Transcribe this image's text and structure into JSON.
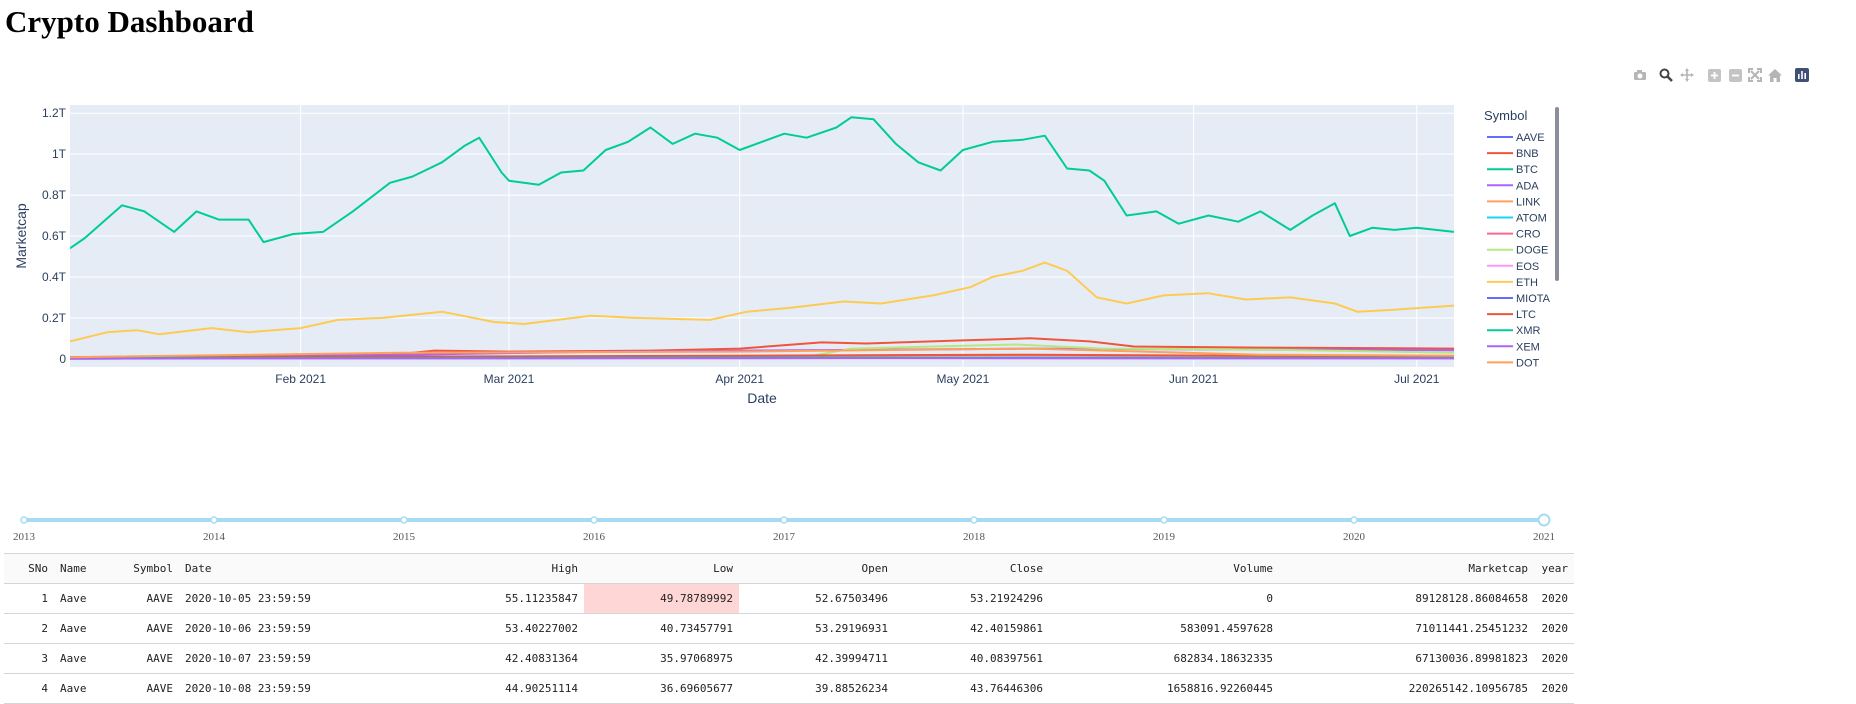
{
  "page": {
    "title": "Crypto Dashboard"
  },
  "modebar": {
    "icons": [
      "camera-icon",
      "zoom-icon",
      "pan-icon",
      "zoom-in-icon",
      "zoom-out-icon",
      "autoscale-icon",
      "reset-axes-icon",
      "plotly-logo-icon"
    ]
  },
  "colors": {
    "plot_bg": "#e5ecf6",
    "btc": "#00cc96",
    "eth": "#fecb52",
    "bnb": "#ef553b"
  },
  "chart_data": {
    "type": "line",
    "xlabel": "Date",
    "ylabel": "Marketcap",
    "x_range": [
      "2021-01-01",
      "2021-07-06"
    ],
    "y_range": [
      -0.04,
      1.24
    ],
    "y_unit": "trillion USD",
    "x_ticks": [
      {
        "date": "2021-02-01",
        "label": "Feb 2021"
      },
      {
        "date": "2021-03-01",
        "label": "Mar 2021"
      },
      {
        "date": "2021-04-01",
        "label": "Apr 2021"
      },
      {
        "date": "2021-05-01",
        "label": "May 2021"
      },
      {
        "date": "2021-06-01",
        "label": "Jun 2021"
      },
      {
        "date": "2021-07-01",
        "label": "Jul 2021"
      }
    ],
    "y_ticks": [
      {
        "value": 0,
        "label": "0"
      },
      {
        "value": 0.2,
        "label": "0.2T"
      },
      {
        "value": 0.4,
        "label": "0.4T"
      },
      {
        "value": 0.6,
        "label": "0.6T"
      },
      {
        "value": 0.8,
        "label": "0.8T"
      },
      {
        "value": 1.0,
        "label": "1T"
      },
      {
        "value": 1.2,
        "label": "1.2T"
      }
    ],
    "grid": true,
    "legend_title": "Symbol",
    "legend_position": "right",
    "series": [
      {
        "name": "AAVE",
        "color": "#636efa",
        "points": [
          [
            "2021-01-01",
            0.001
          ],
          [
            "2021-02-15",
            0.003
          ],
          [
            "2021-04-01",
            0.005
          ],
          [
            "2021-05-10",
            0.007
          ],
          [
            "2021-06-10",
            0.004
          ],
          [
            "2021-07-06",
            0.003
          ]
        ]
      },
      {
        "name": "BNB",
        "color": "#ef553b",
        "points": [
          [
            "2021-01-01",
            0.006
          ],
          [
            "2021-02-10",
            0.008
          ],
          [
            "2021-02-19",
            0.04
          ],
          [
            "2021-03-01",
            0.035
          ],
          [
            "2021-03-20",
            0.04
          ],
          [
            "2021-04-01",
            0.05
          ],
          [
            "2021-04-12",
            0.08
          ],
          [
            "2021-04-18",
            0.075
          ],
          [
            "2021-05-01",
            0.09
          ],
          [
            "2021-05-10",
            0.1
          ],
          [
            "2021-05-18",
            0.085
          ],
          [
            "2021-05-24",
            0.06
          ],
          [
            "2021-06-10",
            0.055
          ],
          [
            "2021-07-06",
            0.05
          ]
        ]
      },
      {
        "name": "BTC",
        "color": "#00cc96",
        "points": [
          [
            "2021-01-01",
            0.54
          ],
          [
            "2021-01-03",
            0.59
          ],
          [
            "2021-01-08",
            0.75
          ],
          [
            "2021-01-11",
            0.72
          ],
          [
            "2021-01-15",
            0.62
          ],
          [
            "2021-01-18",
            0.72
          ],
          [
            "2021-01-21",
            0.68
          ],
          [
            "2021-01-25",
            0.68
          ],
          [
            "2021-01-27",
            0.57
          ],
          [
            "2021-01-31",
            0.61
          ],
          [
            "2021-02-04",
            0.62
          ],
          [
            "2021-02-08",
            0.72
          ],
          [
            "2021-02-13",
            0.86
          ],
          [
            "2021-02-16",
            0.89
          ],
          [
            "2021-02-20",
            0.96
          ],
          [
            "2021-02-23",
            1.04
          ],
          [
            "2021-02-25",
            1.08
          ],
          [
            "2021-02-28",
            0.91
          ],
          [
            "2021-03-01",
            0.87
          ],
          [
            "2021-03-05",
            0.85
          ],
          [
            "2021-03-08",
            0.91
          ],
          [
            "2021-03-11",
            0.92
          ],
          [
            "2021-03-14",
            1.02
          ],
          [
            "2021-03-17",
            1.06
          ],
          [
            "2021-03-20",
            1.13
          ],
          [
            "2021-03-23",
            1.05
          ],
          [
            "2021-03-26",
            1.1
          ],
          [
            "2021-03-29",
            1.08
          ],
          [
            "2021-04-01",
            1.02
          ],
          [
            "2021-04-04",
            1.06
          ],
          [
            "2021-04-07",
            1.1
          ],
          [
            "2021-04-10",
            1.08
          ],
          [
            "2021-04-14",
            1.13
          ],
          [
            "2021-04-16",
            1.18
          ],
          [
            "2021-04-19",
            1.17
          ],
          [
            "2021-04-22",
            1.05
          ],
          [
            "2021-04-25",
            0.96
          ],
          [
            "2021-04-28",
            0.92
          ],
          [
            "2021-05-01",
            1.02
          ],
          [
            "2021-05-05",
            1.06
          ],
          [
            "2021-05-09",
            1.07
          ],
          [
            "2021-05-12",
            1.09
          ],
          [
            "2021-05-15",
            0.93
          ],
          [
            "2021-05-18",
            0.92
          ],
          [
            "2021-05-20",
            0.87
          ],
          [
            "2021-05-23",
            0.7
          ],
          [
            "2021-05-27",
            0.72
          ],
          [
            "2021-05-30",
            0.66
          ],
          [
            "2021-06-03",
            0.7
          ],
          [
            "2021-06-07",
            0.67
          ],
          [
            "2021-06-10",
            0.72
          ],
          [
            "2021-06-14",
            0.63
          ],
          [
            "2021-06-17",
            0.7
          ],
          [
            "2021-06-20",
            0.76
          ],
          [
            "2021-06-22",
            0.6
          ],
          [
            "2021-06-25",
            0.64
          ],
          [
            "2021-06-28",
            0.63
          ],
          [
            "2021-07-01",
            0.64
          ],
          [
            "2021-07-06",
            0.62
          ]
        ]
      },
      {
        "name": "ADA",
        "color": "#ab63fa",
        "points": [
          [
            "2021-01-01",
            0.007
          ],
          [
            "2021-02-15",
            0.02
          ],
          [
            "2021-03-15",
            0.035
          ],
          [
            "2021-05-10",
            0.05
          ],
          [
            "2021-06-10",
            0.045
          ],
          [
            "2021-07-06",
            0.042
          ]
        ]
      },
      {
        "name": "LINK",
        "color": "#ffa15a",
        "points": [
          [
            "2021-01-01",
            0.005
          ],
          [
            "2021-03-01",
            0.01
          ],
          [
            "2021-05-10",
            0.018
          ],
          [
            "2021-07-06",
            0.008
          ]
        ]
      },
      {
        "name": "ATOM",
        "color": "#19d3f3",
        "points": [
          [
            "2021-01-01",
            0.001
          ],
          [
            "2021-04-15",
            0.005
          ],
          [
            "2021-07-06",
            0.002
          ]
        ]
      },
      {
        "name": "CRO",
        "color": "#ff6692",
        "points": [
          [
            "2021-01-01",
            0.001
          ],
          [
            "2021-04-15",
            0.004
          ],
          [
            "2021-07-06",
            0.002
          ]
        ]
      },
      {
        "name": "DOGE",
        "color": "#b6e880",
        "points": [
          [
            "2021-01-01",
            0.001
          ],
          [
            "2021-04-10",
            0.01
          ],
          [
            "2021-04-16",
            0.05
          ],
          [
            "2021-05-08",
            0.07
          ],
          [
            "2021-05-20",
            0.05
          ],
          [
            "2021-06-10",
            0.045
          ],
          [
            "2021-07-06",
            0.03
          ]
        ]
      },
      {
        "name": "EOS",
        "color": "#ff97ff",
        "points": [
          [
            "2021-01-01",
            0.002
          ],
          [
            "2021-04-15",
            0.007
          ],
          [
            "2021-07-06",
            0.003
          ]
        ]
      },
      {
        "name": "ETH",
        "color": "#fecb52",
        "points": [
          [
            "2021-01-01",
            0.085
          ],
          [
            "2021-01-06",
            0.13
          ],
          [
            "2021-01-10",
            0.14
          ],
          [
            "2021-01-13",
            0.12
          ],
          [
            "2021-01-20",
            0.15
          ],
          [
            "2021-01-25",
            0.13
          ],
          [
            "2021-02-01",
            0.15
          ],
          [
            "2021-02-06",
            0.19
          ],
          [
            "2021-02-12",
            0.2
          ],
          [
            "2021-02-20",
            0.23
          ],
          [
            "2021-02-27",
            0.18
          ],
          [
            "2021-03-03",
            0.17
          ],
          [
            "2021-03-12",
            0.21
          ],
          [
            "2021-03-18",
            0.2
          ],
          [
            "2021-03-28",
            0.19
          ],
          [
            "2021-04-02",
            0.23
          ],
          [
            "2021-04-08",
            0.25
          ],
          [
            "2021-04-15",
            0.28
          ],
          [
            "2021-04-20",
            0.27
          ],
          [
            "2021-04-27",
            0.31
          ],
          [
            "2021-05-02",
            0.35
          ],
          [
            "2021-05-05",
            0.4
          ],
          [
            "2021-05-09",
            0.43
          ],
          [
            "2021-05-12",
            0.47
          ],
          [
            "2021-05-15",
            0.43
          ],
          [
            "2021-05-19",
            0.3
          ],
          [
            "2021-05-23",
            0.27
          ],
          [
            "2021-05-28",
            0.31
          ],
          [
            "2021-06-03",
            0.32
          ],
          [
            "2021-06-08",
            0.29
          ],
          [
            "2021-06-14",
            0.3
          ],
          [
            "2021-06-20",
            0.27
          ],
          [
            "2021-06-23",
            0.23
          ],
          [
            "2021-06-28",
            0.24
          ],
          [
            "2021-07-06",
            0.26
          ]
        ]
      },
      {
        "name": "MIOTA",
        "color": "#636efa",
        "points": [
          [
            "2021-01-01",
            0.001
          ],
          [
            "2021-04-15",
            0.004
          ],
          [
            "2021-07-06",
            0.002
          ]
        ]
      },
      {
        "name": "LTC",
        "color": "#ef553b",
        "points": [
          [
            "2021-01-01",
            0.009
          ],
          [
            "2021-03-01",
            0.012
          ],
          [
            "2021-05-10",
            0.02
          ],
          [
            "2021-07-06",
            0.01
          ]
        ]
      },
      {
        "name": "XMR",
        "color": "#00cc96",
        "points": [
          [
            "2021-01-01",
            0.003
          ],
          [
            "2021-04-15",
            0.006
          ],
          [
            "2021-07-06",
            0.004
          ]
        ]
      },
      {
        "name": "XEM",
        "color": "#ab63fa",
        "points": [
          [
            "2021-01-01",
            0.001
          ],
          [
            "2021-04-15",
            0.003
          ],
          [
            "2021-07-06",
            0.002
          ]
        ]
      },
      {
        "name": "DOT",
        "color": "#ffa15a",
        "points": [
          [
            "2021-01-01",
            0.008
          ],
          [
            "2021-02-15",
            0.03
          ],
          [
            "2021-04-01",
            0.035
          ],
          [
            "2021-05-10",
            0.05
          ],
          [
            "2021-06-10",
            0.02
          ],
          [
            "2021-07-06",
            0.015
          ]
        ]
      }
    ]
  },
  "slider": {
    "labels": [
      "2013",
      "2014",
      "2015",
      "2016",
      "2017",
      "2018",
      "2019",
      "2020",
      "2021"
    ],
    "selected": "2021",
    "color": "#a6dcf3"
  },
  "table": {
    "columns": [
      "SNo",
      "Name",
      "Symbol",
      "Date",
      "High",
      "Low",
      "Open",
      "Close",
      "Volume",
      "Marketcap",
      "year"
    ],
    "rows": [
      [
        "1",
        "Aave",
        "AAVE",
        "2020-10-05 23:59:59",
        "55.11235847",
        "49.78789992",
        "52.67503496",
        "53.21924296",
        "0",
        "89128128.86084658",
        "2020"
      ],
      [
        "2",
        "Aave",
        "AAVE",
        "2020-10-06 23:59:59",
        "53.40227002",
        "40.73457791",
        "53.29196931",
        "42.40159861",
        "583091.4597628",
        "71011441.25451232",
        "2020"
      ],
      [
        "3",
        "Aave",
        "AAVE",
        "2020-10-07 23:59:59",
        "42.40831364",
        "35.97068975",
        "42.39994711",
        "40.08397561",
        "682834.18632335",
        "67130036.89981823",
        "2020"
      ],
      [
        "4",
        "Aave",
        "AAVE",
        "2020-10-08 23:59:59",
        "44.90251114",
        "36.69605677",
        "39.88526234",
        "43.76446306",
        "1658816.92260445",
        "220265142.10956785",
        "2020"
      ]
    ],
    "highlight": {
      "row": 0,
      "col": 5,
      "color": "#ffd6d6"
    }
  }
}
